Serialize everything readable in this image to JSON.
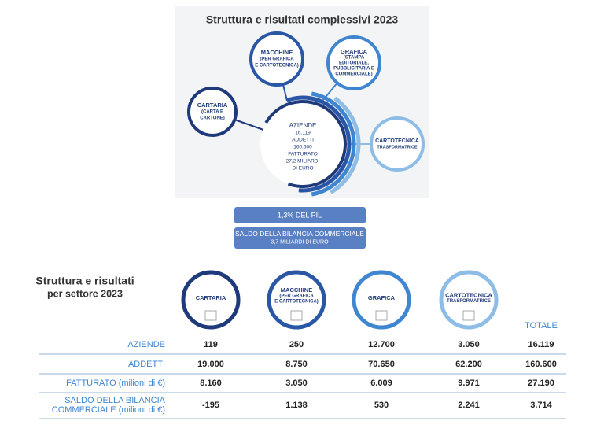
{
  "overview": {
    "title": "Struttura e risultati complessivi 2023",
    "center": {
      "lines": [
        "AZIENDE",
        "16.119",
        "ADDETTI",
        "160.600",
        "FATTURATO",
        "27,2 MILIARDI",
        "DI EURO"
      ]
    },
    "sectors": [
      {
        "lines": [
          "CARTARIA",
          "(CARTA E",
          "CARTONE)"
        ]
      },
      {
        "lines": [
          "MACCHINE",
          "(PER GRAFICA",
          "E CARTOTECNICA)"
        ]
      },
      {
        "lines": [
          "GRAFICA",
          "(STAMPA",
          "EDITORIALE,",
          "PUBBLICITARIA E",
          "COMMERCIALE)"
        ]
      },
      {
        "lines": [
          "CARTOTECNICA",
          "TRASFORMATRICE"
        ]
      }
    ],
    "pil": "1,3% DEL PIL",
    "balance": [
      "SALDO DELLA BILANCIA COMMERCIALE",
      "3,7 MILIARDI DI EURO"
    ]
  },
  "sector_table": {
    "title": [
      "Struttura e risultati",
      "per settore 2023"
    ],
    "columns": [
      {
        "lines": [
          "CARTARIA"
        ]
      },
      {
        "lines": [
          "MACCHINE",
          "(PER GRAFICA",
          "E CARTOTECNICA)"
        ]
      },
      {
        "lines": [
          "GRAFICA"
        ]
      },
      {
        "lines": [
          "CARTOTECNICA",
          "TRASFORMATRICE"
        ]
      }
    ],
    "total_header": "TOTALE",
    "rows": [
      {
        "label": [
          "AZIENDE"
        ],
        "cells": [
          "119",
          "250",
          "12.700",
          "3.050",
          "16.119"
        ]
      },
      {
        "label": [
          "ADDETTI"
        ],
        "cells": [
          "19.000",
          "8.750",
          "70.650",
          "62.200",
          "160.600"
        ]
      },
      {
        "label": [
          "FATTURATO (milioni di €)"
        ],
        "cells": [
          "8.160",
          "3.050",
          "6.009",
          "9.971",
          "27.190"
        ]
      },
      {
        "label": [
          "SALDO DELLA BILANCIA",
          "COMMERCIALE (milioni di €)"
        ],
        "cells": [
          "-195",
          "1.138",
          "530",
          "2.241",
          "3.714"
        ]
      }
    ]
  }
}
